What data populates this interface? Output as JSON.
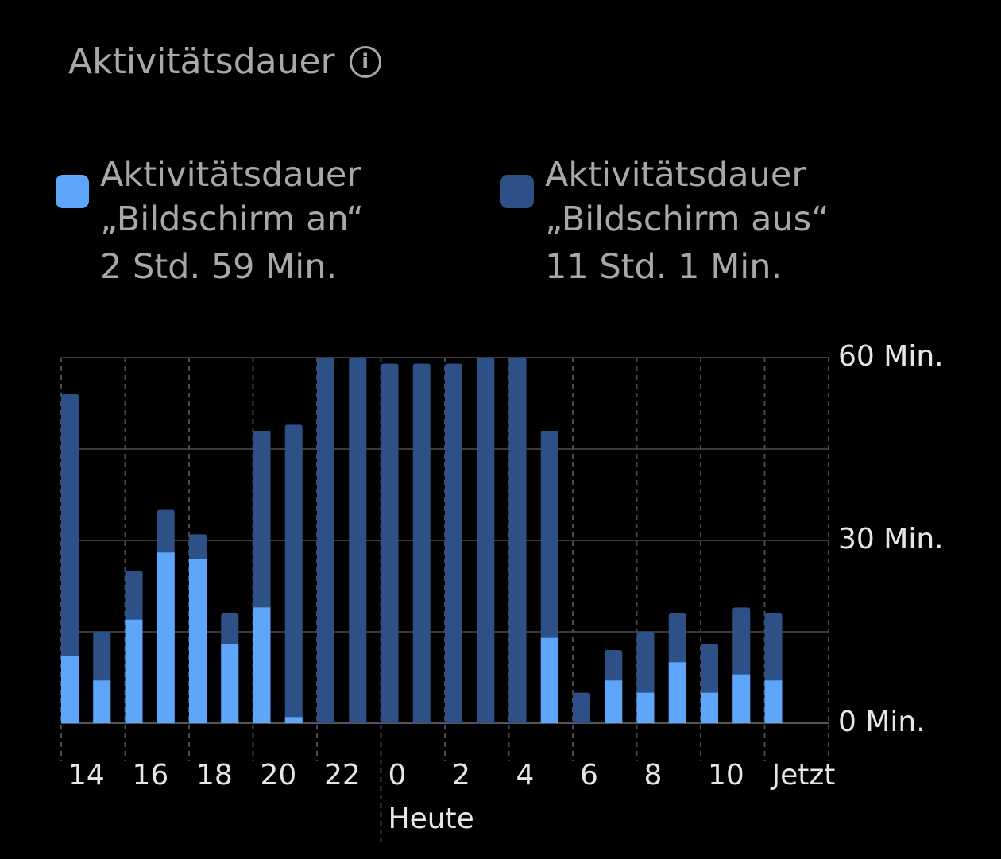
{
  "title": "Aktivitätsdauer",
  "info_icon": "info-circle-icon",
  "legend": [
    {
      "label_line1": "Aktivitätsdauer",
      "label_line2": "„Bildschirm an“",
      "value": "2 Std. 59 Min.",
      "color": "#5ea6fb"
    },
    {
      "label_line1": "Aktivitätsdauer",
      "label_line2": "„Bildschirm aus“",
      "value": "11 Std. 1 Min.",
      "color": "#2d5186"
    }
  ],
  "chart_data": {
    "type": "bar",
    "stacked": true,
    "hours": [
      14,
      15,
      16,
      17,
      18,
      19,
      20,
      21,
      22,
      23,
      0,
      1,
      2,
      3,
      4,
      5,
      6,
      7,
      8,
      9,
      10,
      11,
      12
    ],
    "x_tick_labels": [
      {
        "hour": 14,
        "label": "14"
      },
      {
        "hour": 16,
        "label": "16"
      },
      {
        "hour": 18,
        "label": "18"
      },
      {
        "hour": 20,
        "label": "20"
      },
      {
        "hour": 22,
        "label": "22"
      },
      {
        "hour": 0,
        "label": "0"
      },
      {
        "hour": 2,
        "label": "2"
      },
      {
        "hour": 4,
        "label": "4"
      },
      {
        "hour": 6,
        "label": "6"
      },
      {
        "hour": 8,
        "label": "8"
      },
      {
        "hour": 10,
        "label": "10"
      },
      {
        "hour": 12,
        "label": "Jetzt"
      }
    ],
    "day_label": "Heute",
    "series": [
      {
        "name": "Aktivitätsdauer „Bildschirm an“",
        "color": "#5ea6fb",
        "values": [
          11,
          7,
          17,
          28,
          27,
          13,
          19,
          1,
          0,
          0,
          0,
          0,
          0,
          0,
          0,
          14,
          0,
          7,
          5,
          10,
          5,
          8,
          7
        ]
      },
      {
        "name": "Aktivitätsdauer „Bildschirm aus“",
        "color": "#2d5186",
        "values": [
          43,
          8,
          8,
          7,
          4,
          5,
          29,
          48,
          60,
          60,
          59,
          59,
          59,
          60,
          60,
          34,
          5,
          5,
          10,
          8,
          8,
          11,
          11
        ]
      }
    ],
    "y_ticks": [
      {
        "value": 0,
        "label": "0 Min."
      },
      {
        "value": 30,
        "label": "30 Min."
      },
      {
        "value": 60,
        "label": "60 Min."
      }
    ],
    "ylim": [
      0,
      60
    ],
    "grid": true,
    "y_axis_position": "right"
  }
}
